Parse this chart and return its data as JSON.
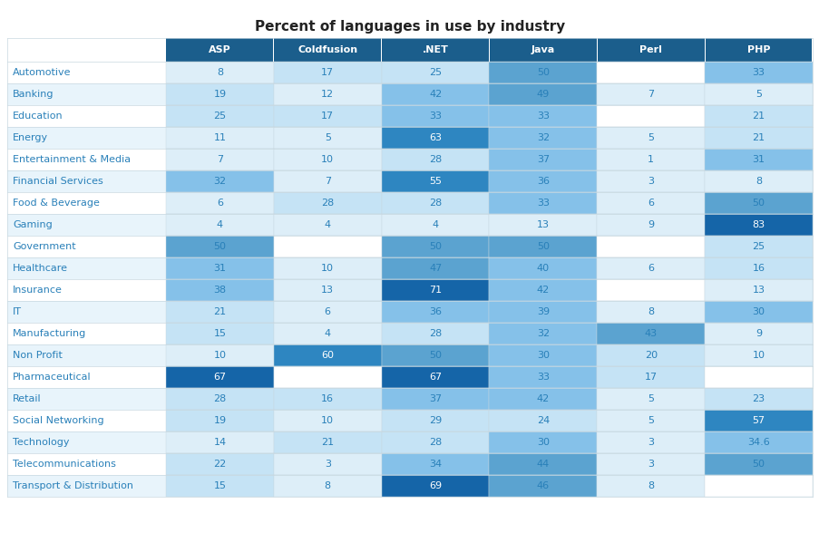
{
  "title": "Percent of languages in use by industry",
  "columns": [
    "ASP",
    "Coldfusion",
    ".NET",
    "Java",
    "Perl",
    "PHP"
  ],
  "rows": [
    "Automotive",
    "Banking",
    "Education",
    "Energy",
    "Entertainment & Media",
    "Financial Services",
    "Food & Beverage",
    "Gaming",
    "Government",
    "Healthcare",
    "Insurance",
    "IT",
    "Manufacturing",
    "Non Profit",
    "Pharmaceutical",
    "Retail",
    "Social Networking",
    "Technology",
    "Telecommunications",
    "Transport & Distribution"
  ],
  "data": [
    [
      8,
      17,
      25,
      50,
      null,
      33
    ],
    [
      19,
      12,
      42,
      49,
      7,
      5
    ],
    [
      25,
      17,
      33,
      33,
      null,
      21
    ],
    [
      11,
      5,
      63,
      32,
      5,
      21
    ],
    [
      7,
      10,
      28,
      37,
      1,
      31
    ],
    [
      32,
      7,
      55,
      36,
      3,
      8
    ],
    [
      6,
      28,
      28,
      33,
      6,
      50
    ],
    [
      4,
      4,
      4,
      13,
      9,
      83
    ],
    [
      50,
      null,
      50,
      50,
      null,
      25
    ],
    [
      31,
      10,
      47,
      40,
      6,
      16
    ],
    [
      38,
      13,
      71,
      42,
      null,
      13
    ],
    [
      21,
      6,
      36,
      39,
      8,
      30
    ],
    [
      15,
      4,
      28,
      32,
      43,
      9
    ],
    [
      10,
      60,
      50,
      30,
      20,
      10
    ],
    [
      67,
      null,
      67,
      33,
      17,
      null
    ],
    [
      28,
      16,
      37,
      42,
      5,
      23
    ],
    [
      19,
      10,
      29,
      24,
      5,
      57
    ],
    [
      14,
      21,
      28,
      30,
      3,
      34.6
    ],
    [
      22,
      3,
      34,
      44,
      3,
      50
    ],
    [
      15,
      8,
      69,
      46,
      8,
      null
    ]
  ],
  "header_bg": "#1b5e8c",
  "header_text": "#ffffff",
  "row_label_text": "#2980b9",
  "cell_text": "#2980b9",
  "bg_white": "#ffffff",
  "bg_light": "#e8f4fb",
  "cell_empty": "#ffffff",
  "cell_vlow": "#ddeef8",
  "cell_low": "#c5e3f5",
  "cell_mid": "#85c1e9",
  "cell_high": "#5ba3d0",
  "cell_vhigh": "#2e86c1",
  "cell_max": "#1565a8",
  "divider_color": "#c8d8e0",
  "title_color": "#222222",
  "title_fontsize": 11,
  "header_fontsize": 8,
  "cell_fontsize": 8,
  "row_label_fontsize": 8
}
